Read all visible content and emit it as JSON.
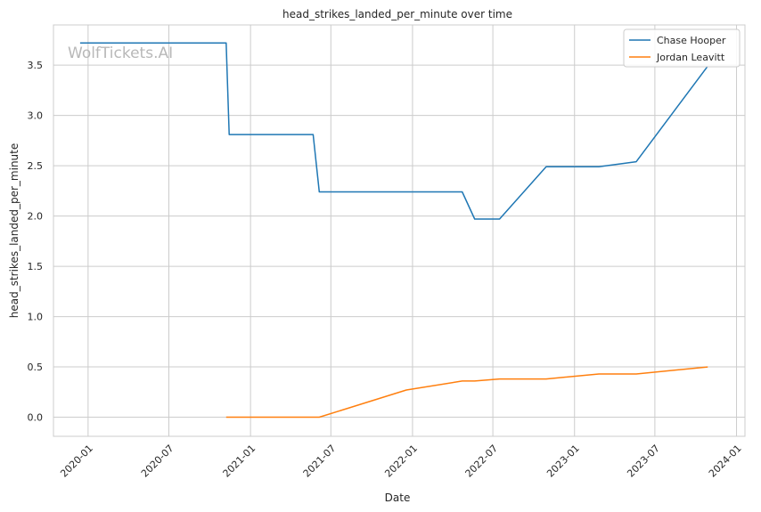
{
  "chart_data": {
    "type": "line",
    "title": "head_strikes_landed_per_minute over time",
    "xlabel": "Date",
    "ylabel": "head_strikes_landed_per_minute",
    "watermark": "WolfTickets.AI",
    "x_ticks": [
      "2020-01",
      "2020-07",
      "2021-01",
      "2021-07",
      "2022-01",
      "2022-07",
      "2023-01",
      "2023-07",
      "2024-01"
    ],
    "y_ticks": [
      "0.0",
      "0.5",
      "1.0",
      "1.5",
      "2.0",
      "2.5",
      "3.0",
      "3.5"
    ],
    "ylim": [
      -0.19,
      3.9
    ],
    "xlim": [
      "2019-10-15",
      "2024-01-20"
    ],
    "grid": true,
    "legend_position": "top-right",
    "series": [
      {
        "name": "Chase Hooper",
        "color": "#1f77b4",
        "points": [
          {
            "x": "2019-12-14",
            "y": 3.72
          },
          {
            "x": "2020-11-07",
            "y": 3.72
          },
          {
            "x": "2020-11-14",
            "y": 2.81
          },
          {
            "x": "2021-05-22",
            "y": 2.81
          },
          {
            "x": "2021-06-05",
            "y": 2.24
          },
          {
            "x": "2022-04-23",
            "y": 2.24
          },
          {
            "x": "2022-05-21",
            "y": 1.97
          },
          {
            "x": "2022-07-16",
            "y": 1.97
          },
          {
            "x": "2022-10-29",
            "y": 2.49
          },
          {
            "x": "2023-02-25",
            "y": 2.49
          },
          {
            "x": "2023-05-20",
            "y": 2.54
          },
          {
            "x": "2023-10-28",
            "y": 3.49
          }
        ]
      },
      {
        "name": "Jordan Leavitt",
        "color": "#ff7f0e",
        "points": [
          {
            "x": "2020-11-07",
            "y": 0.0
          },
          {
            "x": "2021-06-05",
            "y": 0.0
          },
          {
            "x": "2021-12-18",
            "y": 0.27
          },
          {
            "x": "2022-04-23",
            "y": 0.36
          },
          {
            "x": "2022-05-21",
            "y": 0.36
          },
          {
            "x": "2022-07-16",
            "y": 0.38
          },
          {
            "x": "2022-10-29",
            "y": 0.38
          },
          {
            "x": "2023-02-25",
            "y": 0.43
          },
          {
            "x": "2023-05-20",
            "y": 0.43
          },
          {
            "x": "2023-10-28",
            "y": 0.5
          }
        ]
      }
    ]
  }
}
